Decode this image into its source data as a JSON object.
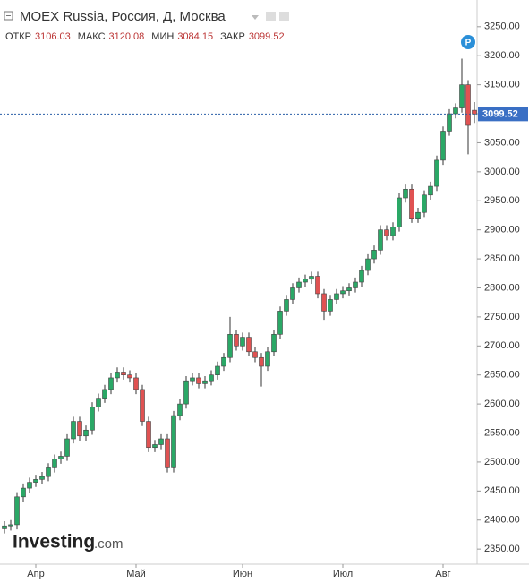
{
  "chart_data": {
    "type": "candlestick",
    "title": "MOEX Russia, Россия, Д, Москва",
    "ohlc_labels": [
      "ОТКР",
      "МАКС",
      "МИН",
      "ЗАКР"
    ],
    "marker_label": "P",
    "watermark": "Investing",
    "watermark_suffix": ".com",
    "categories": [
      null,
      null,
      null,
      null,
      null,
      "Апр",
      null,
      null,
      null,
      null,
      null,
      null,
      null,
      null,
      null,
      null,
      null,
      null,
      null,
      null,
      null,
      "Май",
      null,
      null,
      null,
      null,
      null,
      null,
      null,
      null,
      null,
      null,
      null,
      null,
      null,
      null,
      null,
      null,
      "Июн",
      null,
      null,
      null,
      null,
      null,
      null,
      null,
      null,
      null,
      null,
      null,
      null,
      null,
      null,
      null,
      "Июл",
      null,
      null,
      null,
      null,
      null,
      null,
      null,
      null,
      null,
      null,
      null,
      null,
      null,
      null,
      null,
      "Авг",
      null,
      null,
      null,
      null,
      null
    ],
    "open": [
      2385,
      2390,
      2392,
      2440,
      2455,
      2465,
      2470,
      2475,
      2490,
      2505,
      2510,
      2540,
      2570,
      2545,
      2555,
      2595,
      2610,
      2625,
      2645,
      2655,
      2650,
      2645,
      2625,
      2570,
      2525,
      2530,
      2540,
      2490,
      2580,
      2600,
      2640,
      2645,
      2635,
      2640,
      2650,
      2665,
      2680,
      2720,
      2700,
      2715,
      2690,
      2680,
      2665,
      2690,
      2720,
      2760,
      2780,
      2800,
      2810,
      2815,
      2820,
      2790,
      2760,
      2780,
      2790,
      2795,
      2800,
      2810,
      2830,
      2850,
      2865,
      2900,
      2890,
      2905,
      2955,
      2970,
      2920,
      2930,
      2960,
      2975,
      3020,
      3070,
      3100,
      3110,
      3150,
      3106.03
    ],
    "high": [
      2398,
      2400,
      2448,
      2463,
      2473,
      2478,
      2483,
      2498,
      2513,
      2518,
      2548,
      2578,
      2578,
      2563,
      2603,
      2618,
      2633,
      2653,
      2663,
      2663,
      2658,
      2653,
      2633,
      2578,
      2538,
      2548,
      2548,
      2588,
      2608,
      2648,
      2653,
      2653,
      2648,
      2658,
      2673,
      2688,
      2750,
      2728,
      2723,
      2723,
      2698,
      2688,
      2698,
      2728,
      2768,
      2788,
      2808,
      2818,
      2823,
      2828,
      2828,
      2798,
      2788,
      2798,
      2803,
      2808,
      2818,
      2838,
      2858,
      2873,
      2908,
      2908,
      2913,
      2963,
      2978,
      2978,
      2938,
      2968,
      2983,
      3028,
      3078,
      3108,
      3118,
      3195,
      3158,
      3120.08
    ],
    "low": [
      2377,
      2382,
      2384,
      2432,
      2447,
      2457,
      2462,
      2467,
      2482,
      2497,
      2502,
      2532,
      2537,
      2537,
      2547,
      2587,
      2602,
      2617,
      2637,
      2642,
      2637,
      2617,
      2562,
      2517,
      2517,
      2522,
      2482,
      2482,
      2572,
      2592,
      2632,
      2627,
      2627,
      2632,
      2642,
      2657,
      2672,
      2692,
      2692,
      2682,
      2672,
      2630,
      2657,
      2682,
      2712,
      2752,
      2772,
      2792,
      2802,
      2807,
      2782,
      2745,
      2752,
      2772,
      2782,
      2787,
      2792,
      2802,
      2822,
      2842,
      2857,
      2882,
      2882,
      2897,
      2947,
      2912,
      2912,
      2922,
      2952,
      2967,
      3012,
      3062,
      3092,
      3102,
      3030,
      3084.15
    ],
    "close": [
      2390,
      2392,
      2440,
      2455,
      2465,
      2470,
      2475,
      2490,
      2505,
      2510,
      2540,
      2570,
      2545,
      2555,
      2595,
      2610,
      2625,
      2645,
      2655,
      2650,
      2645,
      2625,
      2570,
      2525,
      2530,
      2540,
      2490,
      2580,
      2600,
      2640,
      2645,
      2635,
      2640,
      2650,
      2665,
      2680,
      2720,
      2700,
      2715,
      2690,
      2680,
      2665,
      2690,
      2720,
      2760,
      2780,
      2800,
      2810,
      2815,
      2820,
      2790,
      2760,
      2780,
      2790,
      2795,
      2800,
      2810,
      2830,
      2850,
      2865,
      2900,
      2890,
      2905,
      2955,
      2970,
      2920,
      2930,
      2960,
      2975,
      3020,
      3070,
      3100,
      3110,
      3150,
      3080,
      3099.52
    ],
    "up_color": "#2aa866",
    "down_color": "#e05252",
    "wick_color": "#333333",
    "ylim": [
      2324,
      3296
    ],
    "yticks": [
      {
        "value": 2350,
        "label": "2350.00"
      },
      {
        "value": 2400,
        "label": "2400.00"
      },
      {
        "value": 2450,
        "label": "2450.00"
      },
      {
        "value": 2500,
        "label": "2500.00"
      },
      {
        "value": 2550,
        "label": "2550.00"
      },
      {
        "value": 2600,
        "label": "2600.00"
      },
      {
        "value": 2650,
        "label": "2650.00"
      },
      {
        "value": 2700,
        "label": "2700.00"
      },
      {
        "value": 2750,
        "label": "2750.00"
      },
      {
        "value": 2800,
        "label": "2800.00"
      },
      {
        "value": 2850,
        "label": "2850.00"
      },
      {
        "value": 2900,
        "label": "2900.00"
      },
      {
        "value": 2950,
        "label": "2950.00"
      },
      {
        "value": 3000,
        "label": "3000.00"
      },
      {
        "value": 3050,
        "label": "3050.00"
      },
      {
        "value": 3100,
        "label": "3100.00"
      },
      {
        "value": 3150,
        "label": "3150.00"
      },
      {
        "value": 3200,
        "label": "3200.00"
      },
      {
        "value": 3250,
        "label": "3250.00"
      }
    ]
  }
}
